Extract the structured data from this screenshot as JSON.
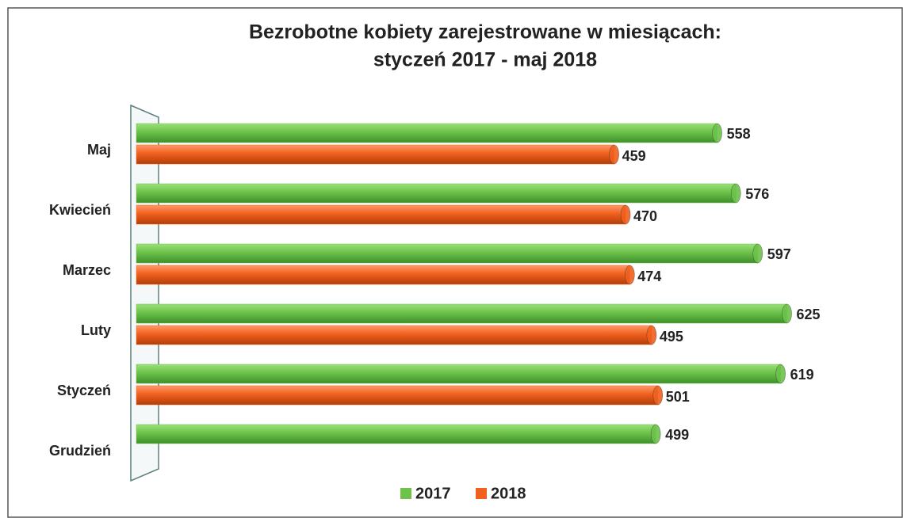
{
  "chart_data": {
    "type": "hbar",
    "title": [
      "Bezrobotne kobiety zarejestrowane w miesiącach:",
      "styczeń 2017 - maj 2018"
    ],
    "categories": [
      "Maj",
      "Kwiecień",
      "Marzec",
      "Luty",
      "Styczeń",
      "Grudzień"
    ],
    "series": [
      {
        "name": "2017",
        "color": "#6cc24a",
        "values": [
          558,
          576,
          597,
          625,
          619,
          499
        ]
      },
      {
        "name": "2018",
        "color": "#f0601e",
        "values": [
          459,
          470,
          474,
          495,
          501,
          null
        ]
      }
    ],
    "xlim": [
      0,
      700
    ]
  }
}
